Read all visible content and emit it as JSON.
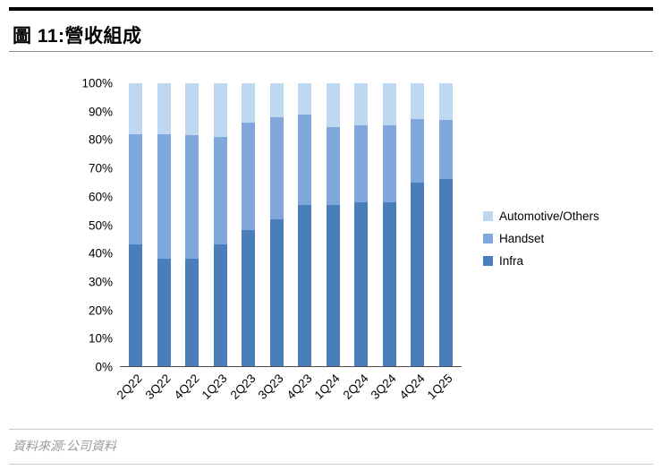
{
  "header": {
    "title": "圖 11:營收組成"
  },
  "footer": {
    "source": "資料來源:公司資料"
  },
  "chart_data": {
    "type": "bar",
    "variant": "stacked-100-percent",
    "title": "圖 11:營收組成",
    "categories": [
      "2Q22",
      "3Q22",
      "4Q22",
      "1Q23",
      "2Q23",
      "3Q23",
      "4Q23",
      "1Q24",
      "2Q24",
      "3Q24",
      "4Q24",
      "1Q25"
    ],
    "series": [
      {
        "name": "Infra",
        "color": "#4a7ebb",
        "values": [
          43,
          38,
          38,
          43,
          48,
          52,
          57,
          57,
          58,
          58,
          65,
          66
        ]
      },
      {
        "name": "Handset",
        "color": "#7fa7dc",
        "values": [
          39,
          44,
          43.5,
          38,
          38,
          36,
          32,
          27.5,
          27,
          27,
          22.5,
          21
        ]
      },
      {
        "name": "Automotive/Others",
        "color": "#bfd8f2",
        "values": [
          18,
          18,
          18.5,
          19,
          14,
          12,
          11,
          15.5,
          15,
          15,
          12.5,
          13
        ]
      }
    ],
    "ylim": [
      0,
      100
    ],
    "ytick_labels": [
      "0%",
      "10%",
      "20%",
      "30%",
      "40%",
      "50%",
      "60%",
      "70%",
      "80%",
      "90%",
      "100%"
    ],
    "xlabel": "",
    "ylabel": "",
    "grid": false,
    "legend_position": "right",
    "legend_order": [
      "Automotive/Others",
      "Handset",
      "Infra"
    ]
  }
}
